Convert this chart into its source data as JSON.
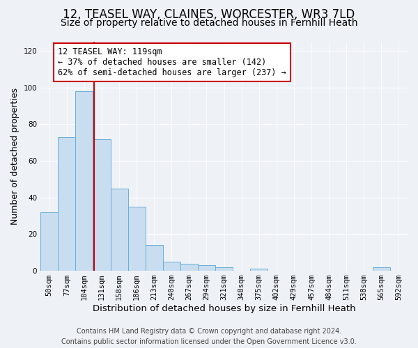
{
  "title": "12, TEASEL WAY, CLAINES, WORCESTER, WR3 7LD",
  "subtitle": "Size of property relative to detached houses in Fernhill Heath",
  "xlabel": "Distribution of detached houses by size in Fernhill Heath",
  "ylabel": "Number of detached properties",
  "bar_labels": [
    "50sqm",
    "77sqm",
    "104sqm",
    "131sqm",
    "158sqm",
    "186sqm",
    "213sqm",
    "240sqm",
    "267sqm",
    "294sqm",
    "321sqm",
    "348sqm",
    "375sqm",
    "402sqm",
    "429sqm",
    "457sqm",
    "484sqm",
    "511sqm",
    "538sqm",
    "565sqm",
    "592sqm"
  ],
  "bar_values": [
    32,
    73,
    98,
    72,
    45,
    35,
    14,
    5,
    4,
    3,
    2,
    0,
    1,
    0,
    0,
    0,
    0,
    0,
    0,
    2,
    0
  ],
  "bar_color": "#c8ddf0",
  "bar_edge_color": "#6aaed6",
  "ylim": [
    0,
    125
  ],
  "yticks": [
    0,
    20,
    40,
    60,
    80,
    100,
    120
  ],
  "vline_color": "#cc0000",
  "annotation_text": "12 TEASEL WAY: 119sqm\n← 37% of detached houses are smaller (142)\n62% of semi-detached houses are larger (237) →",
  "annotation_box_color": "#ffffff",
  "annotation_box_edge": "#cc0000",
  "footer_line1": "Contains HM Land Registry data © Crown copyright and database right 2024.",
  "footer_line2": "Contains public sector information licensed under the Open Government Licence v3.0.",
  "title_fontsize": 12,
  "subtitle_fontsize": 10,
  "xlabel_fontsize": 9.5,
  "ylabel_fontsize": 9,
  "tick_fontsize": 7.5,
  "annotation_fontsize": 8.5,
  "footer_fontsize": 7,
  "background_color": "#eef2f7",
  "grid_color": "#ffffff"
}
